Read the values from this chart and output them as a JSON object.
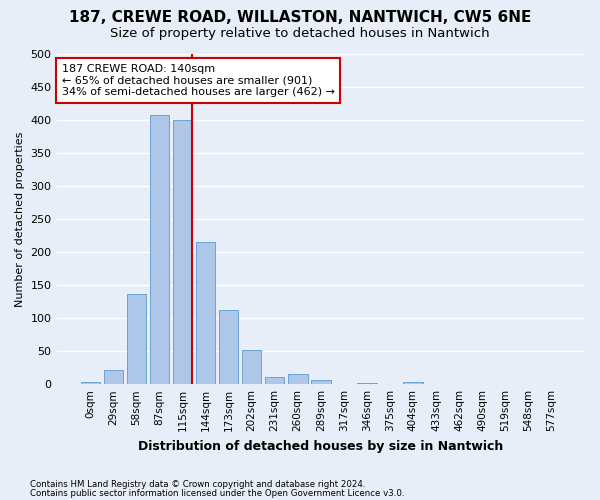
{
  "title": "187, CREWE ROAD, WILLASTON, NANTWICH, CW5 6NE",
  "subtitle": "Size of property relative to detached houses in Nantwich",
  "xlabel": "Distribution of detached houses by size in Nantwich",
  "ylabel": "Number of detached properties",
  "footnote1": "Contains HM Land Registry data © Crown copyright and database right 2024.",
  "footnote2": "Contains public sector information licensed under the Open Government Licence v3.0.",
  "bar_labels": [
    "0sqm",
    "29sqm",
    "58sqm",
    "87sqm",
    "115sqm",
    "144sqm",
    "173sqm",
    "202sqm",
    "231sqm",
    "260sqm",
    "289sqm",
    "317sqm",
    "346sqm",
    "375sqm",
    "404sqm",
    "433sqm",
    "462sqm",
    "490sqm",
    "519sqm",
    "548sqm",
    "577sqm"
  ],
  "bar_heights": [
    3,
    21,
    136,
    408,
    400,
    216,
    113,
    52,
    11,
    15,
    7,
    0,
    2,
    0,
    3,
    0,
    0,
    0,
    0,
    0,
    1
  ],
  "bar_color": "#aec6e8",
  "bar_edgecolor": "#6aa3d5",
  "vline_color": "#cc0000",
  "annotation_text": "187 CREWE ROAD: 140sqm\n← 65% of detached houses are smaller (901)\n34% of semi-detached houses are larger (462) →",
  "annotation_box_color": "#ffffff",
  "annotation_box_edgecolor": "#cc0000",
  "ylim": [
    0,
    500
  ],
  "yticks": [
    0,
    50,
    100,
    150,
    200,
    250,
    300,
    350,
    400,
    450,
    500
  ],
  "background_color": "#e8eef8",
  "plot_background_color": "#e8eef8",
  "title_fontsize": 11,
  "subtitle_fontsize": 9.5,
  "grid_color": "#ffffff",
  "figsize": [
    6.0,
    5.0
  ],
  "dpi": 100
}
